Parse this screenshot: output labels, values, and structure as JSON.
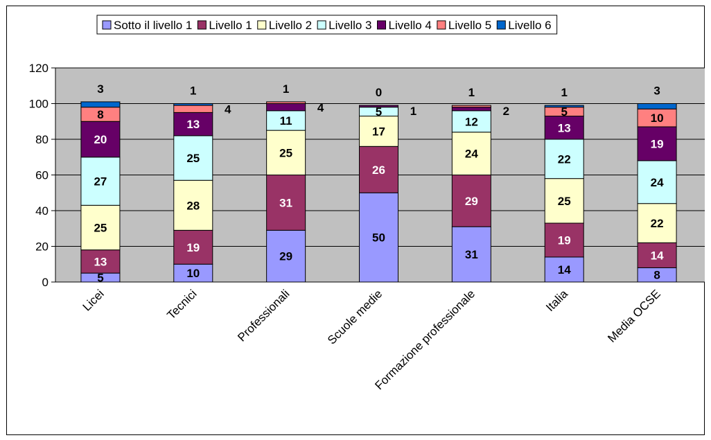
{
  "chart_data": {
    "type": "bar",
    "stacked": true,
    "title": "",
    "xlabel": "",
    "ylabel": "",
    "ylim": [
      0,
      120
    ],
    "yticks": [
      0,
      20,
      40,
      60,
      80,
      100,
      120
    ],
    "grid": true,
    "legend_placement": "top",
    "categories": [
      "Licei",
      "Tecnici",
      "Professionali",
      "Scuole medie",
      "Formazione professionale",
      "Italia",
      "Media OCSE"
    ],
    "series": [
      {
        "name": "Sotto il livello 1",
        "color": "#9999ff",
        "values": [
          5,
          10,
          29,
          50,
          31,
          14,
          8
        ]
      },
      {
        "name": "Livello 1",
        "color": "#993366",
        "values": [
          13,
          19,
          31,
          26,
          29,
          19,
          14
        ]
      },
      {
        "name": "Livello 2",
        "color": "#ffffcc",
        "values": [
          25,
          28,
          25,
          17,
          24,
          25,
          22
        ]
      },
      {
        "name": "Livello 3",
        "color": "#ccffff",
        "values": [
          27,
          25,
          11,
          5,
          12,
          22,
          24
        ]
      },
      {
        "name": "Livello 4",
        "color": "#660066",
        "values": [
          20,
          13,
          4,
          1,
          2,
          13,
          19
        ]
      },
      {
        "name": "Livello 5",
        "color": "#ff8080",
        "values": [
          8,
          4,
          1,
          0,
          1,
          5,
          10
        ]
      },
      {
        "name": "Livello 6",
        "color": "#0066cc",
        "values": [
          3,
          1,
          0,
          0,
          0,
          1,
          3
        ]
      }
    ],
    "data_labels": [
      [
        "5",
        "13",
        "25",
        "27",
        "20",
        "8",
        "3"
      ],
      [
        "10",
        "19",
        "28",
        "25",
        "13",
        "4",
        "1"
      ],
      [
        "29",
        "31",
        "25",
        "11",
        "4",
        "1",
        ""
      ],
      [
        "50",
        "26",
        "17",
        "5",
        "1",
        "0",
        ""
      ],
      [
        "31",
        "29",
        "24",
        "12",
        "2",
        "1",
        ""
      ],
      [
        "14",
        "19",
        "25",
        "22",
        "13",
        "5",
        "1"
      ],
      [
        "8",
        "14",
        "22",
        "24",
        "19",
        "10",
        "3"
      ]
    ],
    "colors": {
      "plot_background": "#c0c0c0",
      "gridline": "#000000",
      "bar_border": "#000000"
    }
  }
}
